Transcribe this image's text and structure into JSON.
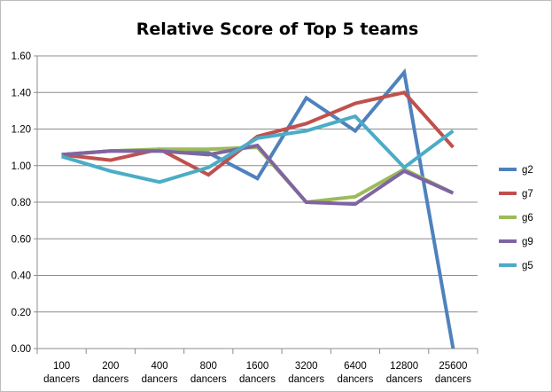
{
  "chart_data": {
    "type": "line",
    "title": "Relative Score of Top 5 teams",
    "categories": [
      [
        "100",
        "dancers"
      ],
      [
        "200",
        "dancers"
      ],
      [
        "400",
        "dancers"
      ],
      [
        "800",
        "dancers"
      ],
      [
        "1600",
        "dancers"
      ],
      [
        "3200",
        "dancers"
      ],
      [
        "6400",
        "dancers"
      ],
      [
        "12800",
        "dancers"
      ],
      [
        "25600",
        "dancers"
      ]
    ],
    "ylim": [
      0,
      1.6
    ],
    "yticks": [
      "0.00",
      "0.20",
      "0.40",
      "0.60",
      "0.80",
      "1.00",
      "1.20",
      "1.40",
      "1.60"
    ],
    "grid": "horizontal",
    "legend_position": "right",
    "series": [
      {
        "name": "g2",
        "color": "#4f81bd",
        "values": [
          1.06,
          1.08,
          1.08,
          1.07,
          0.93,
          1.37,
          1.19,
          1.51,
          0.0
        ]
      },
      {
        "name": "g7",
        "color": "#c0504d",
        "values": [
          1.06,
          1.03,
          1.09,
          0.95,
          1.16,
          1.23,
          1.34,
          1.4,
          1.1
        ]
      },
      {
        "name": "g6",
        "color": "#9bbb59",
        "values": [
          1.06,
          1.08,
          1.09,
          1.09,
          1.1,
          0.8,
          0.83,
          0.98,
          0.85
        ]
      },
      {
        "name": "g9",
        "color": "#8064a2",
        "values": [
          1.06,
          1.08,
          1.08,
          1.06,
          1.11,
          0.8,
          0.79,
          0.97,
          0.85
        ]
      },
      {
        "name": "g5",
        "color": "#4bacc6",
        "values": [
          1.05,
          0.97,
          0.91,
          0.99,
          1.15,
          1.19,
          1.27,
          0.99,
          1.19
        ]
      }
    ]
  }
}
